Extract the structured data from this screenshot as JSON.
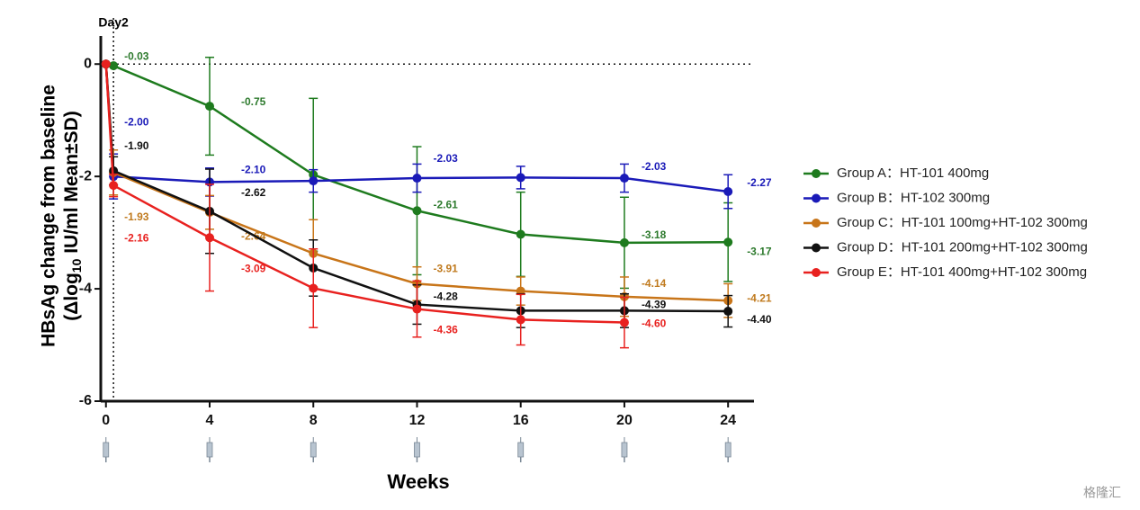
{
  "chart_data": {
    "type": "line",
    "ylabel": [
      "HBsAg change from baseline",
      "(Δlog",
      "10",
      " IU/ml Mean±SD)"
    ],
    "xlabel": "Weeks",
    "annotation": {
      "text": "Day2",
      "x": 0.29
    },
    "watermark": "格隆汇",
    "x": [
      0,
      0.29,
      4,
      8,
      12,
      16,
      20,
      24
    ],
    "xlim": [
      -0.2,
      25
    ],
    "xticks": [
      0,
      4,
      8,
      12,
      16,
      20,
      24
    ],
    "ylim": [
      -6,
      0.5
    ],
    "yticks": [
      0,
      -2,
      -4,
      -6
    ],
    "series": [
      {
        "name": "Group A：HT-101 400mg",
        "color": "#1e7b1e",
        "label_color": "#2d7a2d",
        "values": [
          0,
          -0.03,
          -0.75,
          -1.97,
          -2.61,
          -3.03,
          -3.18,
          -3.17
        ],
        "errors": [
          0,
          0,
          0.87,
          1.36,
          1.14,
          0.75,
          0.81,
          0.7
        ],
        "value_labels": [
          null,
          "-0.03",
          "-0.75",
          null,
          "-2.61",
          null,
          "-3.18",
          "-3.17"
        ]
      },
      {
        "name": "Group B：HT-102 300mg",
        "color": "#1a1ab8",
        "label_color": "#1a1ab8",
        "values": [
          0,
          -2.0,
          -2.1,
          -2.08,
          -2.03,
          -2.02,
          -2.03,
          -2.27
        ],
        "errors": [
          0,
          0.4,
          0.25,
          0.2,
          0.25,
          0.2,
          0.25,
          0.3
        ],
        "value_labels": [
          null,
          "-2.00",
          "-2.10",
          null,
          "-2.03",
          null,
          "-2.03",
          "-2.27"
        ]
      },
      {
        "name": "Group C：HT-101 100mg+HT-102 300mg",
        "color": "#c87519",
        "label_color": "#c07a1e",
        "values": [
          0,
          -1.93,
          -2.64,
          -3.37,
          -3.91,
          -4.04,
          -4.14,
          -4.21
        ],
        "errors": [
          0,
          0.4,
          0.3,
          0.6,
          0.3,
          0.25,
          0.35,
          0.3
        ],
        "value_labels": [
          null,
          "-1.93",
          "-2.64",
          null,
          "-3.91",
          null,
          "-4.14",
          "-4.21"
        ]
      },
      {
        "name": "Group D：HT-101 200mg+HT-102 300mg",
        "color": "#111111",
        "label_color": "#111111",
        "values": [
          0,
          -1.9,
          -2.62,
          -3.63,
          -4.28,
          -4.39,
          -4.39,
          -4.4
        ],
        "errors": [
          0,
          0.25,
          0.75,
          0.5,
          0.35,
          0.3,
          0.3,
          0.28
        ],
        "value_labels": [
          null,
          "-1.90",
          "-2.62",
          null,
          "-4.28",
          null,
          "-4.39",
          "-4.40"
        ]
      },
      {
        "name": "Group E：HT-101 400mg+HT-102 300mg",
        "color": "#e8211f",
        "label_color": "#e8211f",
        "values": [
          0,
          -2.16,
          -3.09,
          -3.99,
          -4.36,
          -4.55,
          -4.6,
          null
        ],
        "errors": [
          0,
          0.2,
          0.95,
          0.7,
          0.5,
          0.45,
          0.45,
          null
        ],
        "value_labels": [
          null,
          "-2.16",
          "-3.09",
          null,
          "-4.36",
          null,
          "-4.60",
          null
        ]
      }
    ]
  }
}
